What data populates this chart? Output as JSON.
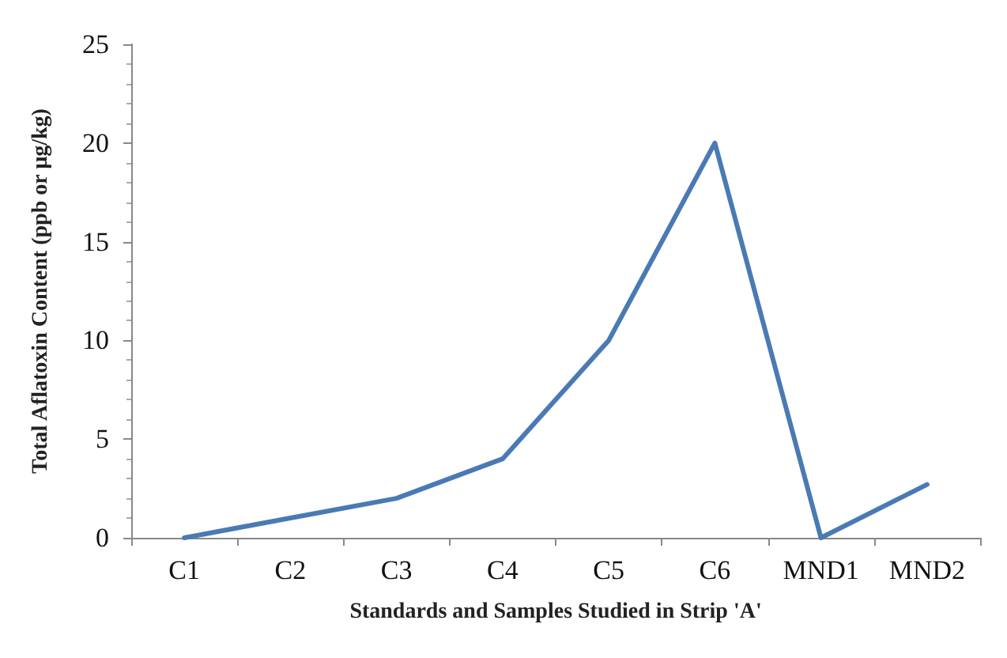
{
  "chart_data": {
    "type": "line",
    "xlabel": "Standards and Samples Studied in Strip 'A'",
    "ylabel": "Total Aflatoxin Content (ppb or µg/kg)",
    "categories": [
      "C1",
      "C2",
      "C3",
      "C4",
      "C5",
      "C6",
      "MND1",
      "MND2"
    ],
    "series": [
      {
        "color": "#4a7ab4",
        "values": [
          0,
          1,
          2,
          4,
          10,
          20,
          0,
          2.7
        ]
      }
    ],
    "ylim": [
      0,
      25
    ],
    "yticks": [
      0,
      5,
      10,
      15,
      20,
      25
    ],
    "grid": false,
    "marker": "none",
    "line_style": "solid"
  }
}
